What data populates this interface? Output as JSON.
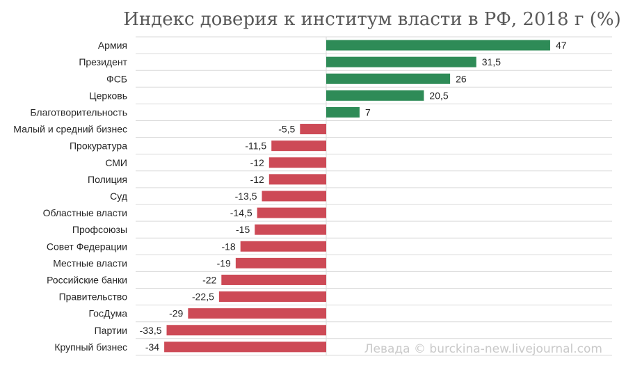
{
  "chart_data": {
    "type": "bar",
    "orientation": "horizontal",
    "title": "Индекс доверия к институм власти в РФ, 2018 г (%)",
    "categories": [
      "Армия",
      "Президент",
      "ФСБ",
      "Церковь",
      "Благотворительность",
      "Малый и средний бизнес",
      "Прокуратура",
      "СМИ",
      "Полиция",
      "Суд",
      "Областные власти",
      "Профсоюзы",
      "Совет Федерации",
      "Местные власти",
      "Российские банки",
      "Правительство",
      "ГосДума",
      "Партии",
      "Крупный бизнес"
    ],
    "values": [
      47,
      31.5,
      26,
      20.5,
      7,
      -5.5,
      -11.5,
      -12,
      -12,
      -13.5,
      -14.5,
      -15,
      -18,
      -19,
      -22,
      -22.5,
      -29,
      -33.5,
      -34
    ],
    "value_labels": [
      "47",
      "31,5",
      "26",
      "20,5",
      "7",
      "-5,5",
      "-11,5",
      "-12",
      "-12",
      "-13,5",
      "-14,5",
      "-15",
      "-18",
      "-19",
      "-22",
      "-22,5",
      "-29",
      "-33,5",
      "-34"
    ],
    "xlim": [
      -40,
      60
    ],
    "grid": "horizontal separators",
    "colors": {
      "positive": "#2e8b57",
      "negative": "#cd4a56",
      "grid": "#d9d9d9"
    },
    "watermark": "Левада © burckina-new.livejournal.com"
  }
}
